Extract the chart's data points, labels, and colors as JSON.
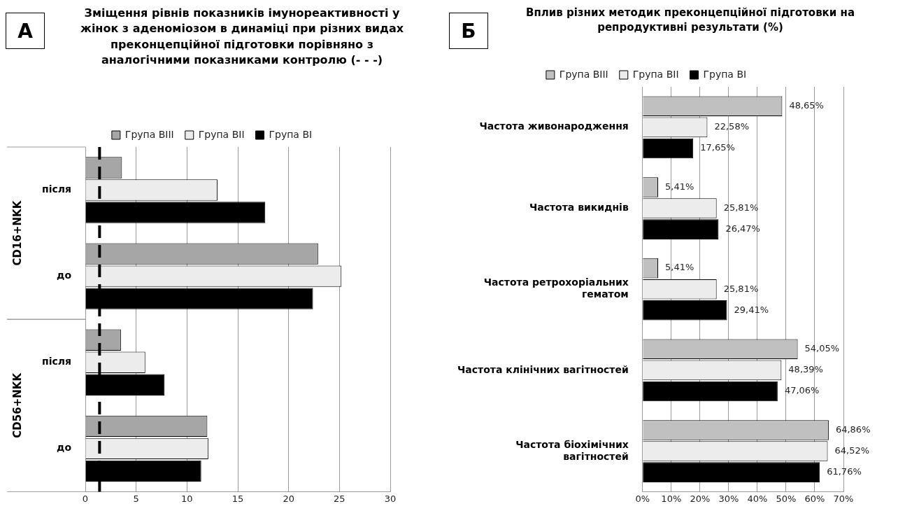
{
  "chart_data": [
    {
      "type": "bar",
      "orientation": "horizontal",
      "title": "Зміщення рівнів показників імунореактивності у жінок з аденоміозом в динаміці при різних видах преконцепційної підготовки порівняно з аналогічними показниками контролю (- - -)",
      "annotations": [
        "А",
        "CD16+NKK",
        "CD56+NKK"
      ],
      "categories": [
        "після",
        "до",
        "після",
        "до"
      ],
      "series": [
        {
          "name": "Група ВIII",
          "color": "#a6a6a6",
          "values": [
            3.6,
            22.9,
            3.5,
            12.0
          ]
        },
        {
          "name": "Група ВII",
          "color": "#ececec",
          "values": [
            13.0,
            25.2,
            5.9,
            12.1
          ]
        },
        {
          "name": "Група ВI",
          "color": "#000000",
          "values": [
            17.7,
            22.4,
            7.8,
            11.4
          ]
        }
      ],
      "xlim": [
        0,
        30
      ],
      "xticks": [
        0,
        5,
        10,
        15,
        20,
        25,
        30
      ],
      "grid": "x",
      "legend": "top",
      "ref_lines": [
        {
          "axis": "x",
          "value": 1.4,
          "color": "#000000",
          "line_style": "dashed"
        }
      ]
    },
    {
      "type": "bar",
      "orientation": "horizontal",
      "title": "Вплив різних методик преконцепційної підготовки на репродуктивні результати (%)",
      "annotations": [
        "Б"
      ],
      "categories": [
        "Частота живонародження",
        "Частота викиднів",
        "Частота ретрохоріальних гематом",
        "Частота клінічних вагітностей",
        "Частота біохімічних вагітностей"
      ],
      "series": [
        {
          "name": "Група ВIII",
          "color": "#c0c0c0",
          "values": [
            48.65,
            5.41,
            5.41,
            54.05,
            64.86
          ],
          "value_labels": [
            "48,65%",
            "5,41%",
            "5,41%",
            "54,05%",
            "64,86%"
          ]
        },
        {
          "name": "Група ВII",
          "color": "#ececec",
          "values": [
            22.58,
            25.81,
            25.81,
            48.39,
            64.52
          ],
          "value_labels": [
            "22,58%",
            "25,81%",
            "25,81%",
            "48,39%",
            "64,52%"
          ]
        },
        {
          "name": "Група ВI",
          "color": "#000000",
          "values": [
            17.65,
            26.47,
            29.41,
            47.06,
            61.76
          ],
          "value_labels": [
            "17,65%",
            "26,47%",
            "29,41%",
            "47,06%",
            "61,76%"
          ]
        }
      ],
      "xlim": [
        0,
        70
      ],
      "xticks": [
        {
          "value": 0,
          "label": "0%"
        },
        {
          "value": 10,
          "label": "10%"
        },
        {
          "value": 20,
          "label": "20%"
        },
        {
          "value": 30,
          "label": "30%"
        },
        {
          "value": 40,
          "label": "40%"
        },
        {
          "value": 50,
          "label": "50%"
        },
        {
          "value": 60,
          "label": "60%"
        },
        {
          "value": 70,
          "label": "70%"
        }
      ],
      "grid": "x",
      "legend": "top"
    }
  ]
}
